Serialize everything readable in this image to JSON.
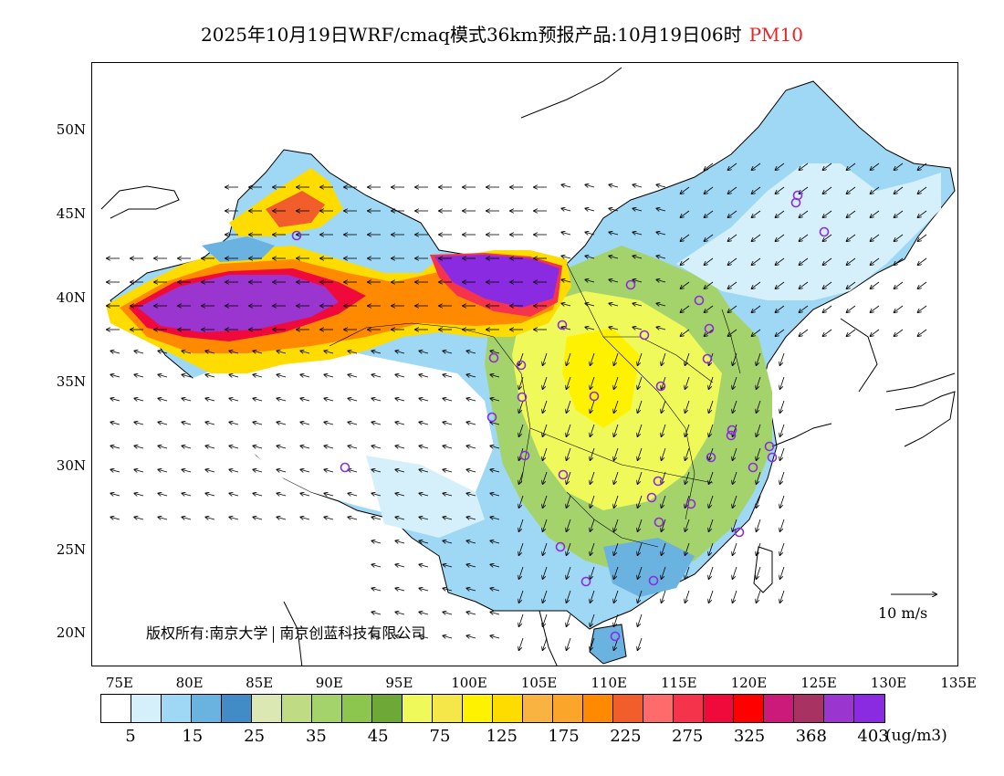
{
  "title": {
    "main": "2025年10月19日WRF/cmaq模式36km预报产品:10月19日06时",
    "pollutant": "PM10",
    "pollutant_color": "#ee2222"
  },
  "map": {
    "y_ticks": [
      "50N",
      "45N",
      "40N",
      "35N",
      "30N",
      "25N",
      "20N"
    ],
    "x_ticks": [
      "75E",
      "80E",
      "85E",
      "90E",
      "95E",
      "100E",
      "105E",
      "110E",
      "115E",
      "120E",
      "125E",
      "130E",
      "135E"
    ],
    "copyright": {
      "prefix": "版权所有:南京大学",
      "suffix": "南京创蓝科技有限公司"
    },
    "wind_scale_label": "10 m/s"
  },
  "legend": {
    "colors": [
      "#ffffff",
      "#d6f0fb",
      "#9ed8f5",
      "#6ab2df",
      "#418cc6",
      "#dbe8b3",
      "#bfdb84",
      "#a5d36b",
      "#8dc64e",
      "#6ea836",
      "#eff95a",
      "#f5e64a",
      "#fff200",
      "#fedc00",
      "#f9b340",
      "#fba52a",
      "#ff8a00",
      "#f15d2b",
      "#ff6b6b",
      "#f5344b",
      "#ef0a3b",
      "#ff0000",
      "#cb1a7a",
      "#a83262",
      "#9b35d0",
      "#8a2be2"
    ],
    "labels": [
      "5",
      "15",
      "25",
      "35",
      "45",
      "75",
      "125",
      "175",
      "225",
      "275",
      "325",
      "368",
      "403"
    ],
    "unit": "(ug/m3)"
  }
}
